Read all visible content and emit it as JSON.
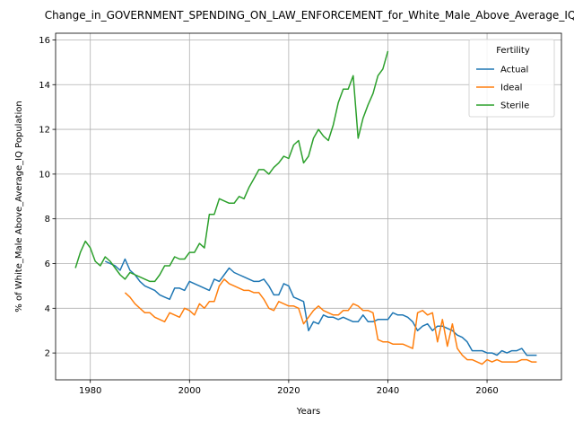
{
  "chart_data": {
    "type": "line",
    "title": "Change_in_GOVERNMENT_SPENDING_ON_LAW_ENFORCEMENT_for_White_Male_Above_Average_IQ",
    "xlabel": "Years",
    "ylabel": "% of White_Male Above_Average_IQ Population",
    "xlim": [
      1973,
      2075
    ],
    "ylim": [
      0.8,
      16.3
    ],
    "xticks": [
      1980,
      2000,
      2020,
      2040,
      2060
    ],
    "yticks": [
      2,
      4,
      6,
      8,
      10,
      12,
      14,
      16
    ],
    "grid": true,
    "legend": {
      "title": "Fertility",
      "placement": "top-right"
    },
    "series": [
      {
        "name": "Actual",
        "color": "#1f77b4",
        "x": [
          1983,
          1984,
          1985,
          1986,
          1987,
          1988,
          1989,
          1990,
          1991,
          1992,
          1993,
          1994,
          1995,
          1996,
          1997,
          1998,
          1999,
          2000,
          2001,
          2002,
          2003,
          2004,
          2005,
          2006,
          2007,
          2008,
          2009,
          2010,
          2011,
          2012,
          2013,
          2014,
          2015,
          2016,
          2017,
          2018,
          2019,
          2020,
          2021,
          2022,
          2023,
          2024,
          2025,
          2026,
          2027,
          2028,
          2029,
          2030,
          2031,
          2032,
          2033,
          2034,
          2035,
          2036,
          2037,
          2038,
          2039,
          2040,
          2041,
          2042,
          2043,
          2044,
          2045,
          2046,
          2047,
          2048,
          2049,
          2050,
          2051,
          2052,
          2053,
          2054,
          2055,
          2056,
          2057,
          2058,
          2059,
          2060,
          2061,
          2062,
          2063,
          2064,
          2065,
          2066,
          2067,
          2068,
          2069,
          2070
        ],
        "values": [
          6.1,
          6.0,
          5.9,
          5.7,
          6.2,
          5.7,
          5.5,
          5.2,
          5.0,
          4.9,
          4.8,
          4.6,
          4.5,
          4.4,
          4.9,
          4.9,
          4.8,
          5.2,
          5.1,
          5.0,
          4.9,
          4.8,
          5.3,
          5.2,
          5.5,
          5.8,
          5.6,
          5.5,
          5.4,
          5.3,
          5.2,
          5.2,
          5.3,
          5.0,
          4.6,
          4.6,
          5.1,
          5.0,
          4.5,
          4.4,
          4.3,
          3.0,
          3.4,
          3.3,
          3.7,
          3.6,
          3.6,
          3.5,
          3.6,
          3.5,
          3.4,
          3.4,
          3.7,
          3.4,
          3.4,
          3.5,
          3.5,
          3.5,
          3.8,
          3.7,
          3.7,
          3.6,
          3.4,
          3.0,
          3.2,
          3.3,
          3.0,
          3.2,
          3.2,
          3.1,
          3.0,
          2.8,
          2.7,
          2.5,
          2.1,
          2.1,
          2.1,
          2.0,
          2.0,
          1.9,
          2.1,
          2.0,
          2.1,
          2.1,
          2.2,
          1.9,
          1.9,
          1.9
        ]
      },
      {
        "name": "Ideal",
        "color": "#ff7f0e",
        "x": [
          1987,
          1988,
          1989,
          1990,
          1991,
          1992,
          1993,
          1994,
          1995,
          1996,
          1997,
          1998,
          1999,
          2000,
          2001,
          2002,
          2003,
          2004,
          2005,
          2006,
          2007,
          2008,
          2009,
          2010,
          2011,
          2012,
          2013,
          2014,
          2015,
          2016,
          2017,
          2018,
          2019,
          2020,
          2021,
          2022,
          2023,
          2024,
          2025,
          2026,
          2027,
          2028,
          2029,
          2030,
          2031,
          2032,
          2033,
          2034,
          2035,
          2036,
          2037,
          2038,
          2039,
          2040,
          2041,
          2042,
          2043,
          2044,
          2045,
          2046,
          2047,
          2048,
          2049,
          2050,
          2051,
          2052,
          2053,
          2054,
          2055,
          2056,
          2057,
          2058,
          2059,
          2060,
          2061,
          2062,
          2063,
          2064,
          2065,
          2066,
          2067,
          2068,
          2069,
          2070
        ],
        "values": [
          4.7,
          4.5,
          4.2,
          4.0,
          3.8,
          3.8,
          3.6,
          3.5,
          3.4,
          3.8,
          3.7,
          3.6,
          4.0,
          3.9,
          3.7,
          4.2,
          4.0,
          4.3,
          4.3,
          5.0,
          5.3,
          5.1,
          5.0,
          4.9,
          4.8,
          4.8,
          4.7,
          4.7,
          4.4,
          4.0,
          3.9,
          4.3,
          4.2,
          4.1,
          4.1,
          4.0,
          3.3,
          3.6,
          3.9,
          4.1,
          3.9,
          3.8,
          3.7,
          3.7,
          3.9,
          3.9,
          4.2,
          4.1,
          3.9,
          3.9,
          3.8,
          2.6,
          2.5,
          2.5,
          2.4,
          2.4,
          2.4,
          2.3,
          2.2,
          3.8,
          3.9,
          3.7,
          3.8,
          2.5,
          3.5,
          2.3,
          3.3,
          2.2,
          1.9,
          1.7,
          1.7,
          1.6,
          1.5,
          1.7,
          1.6,
          1.7,
          1.6,
          1.6,
          1.6,
          1.6,
          1.7,
          1.7,
          1.6,
          1.6
        ]
      },
      {
        "name": "Sterile",
        "color": "#2ca02c",
        "x": [
          1977,
          1978,
          1979,
          1980,
          1981,
          1982,
          1983,
          1984,
          1985,
          1986,
          1987,
          1988,
          1989,
          1990,
          1991,
          1992,
          1993,
          1994,
          1995,
          1996,
          1997,
          1998,
          1999,
          2000,
          2001,
          2002,
          2003,
          2004,
          2005,
          2006,
          2007,
          2008,
          2009,
          2010,
          2011,
          2012,
          2013,
          2014,
          2015,
          2016,
          2017,
          2018,
          2019,
          2020,
          2021,
          2022,
          2023,
          2024,
          2025,
          2026,
          2027,
          2028,
          2029,
          2030,
          2031,
          2032,
          2033,
          2034,
          2035,
          2036,
          2037,
          2038,
          2039,
          2040
        ],
        "values": [
          5.8,
          6.5,
          7.0,
          6.7,
          6.1,
          5.9,
          6.3,
          6.1,
          5.8,
          5.5,
          5.3,
          5.6,
          5.5,
          5.4,
          5.3,
          5.2,
          5.2,
          5.5,
          5.9,
          5.9,
          6.3,
          6.2,
          6.2,
          6.5,
          6.5,
          6.9,
          6.7,
          8.2,
          8.2,
          8.9,
          8.8,
          8.7,
          8.7,
          9.0,
          8.9,
          9.4,
          9.8,
          10.2,
          10.2,
          10.0,
          10.3,
          10.5,
          10.8,
          10.7,
          11.3,
          11.5,
          10.5,
          10.8,
          11.6,
          12.0,
          11.7,
          11.5,
          12.2,
          13.2,
          13.8,
          13.8,
          14.4,
          11.6,
          12.5,
          13.1,
          13.6,
          14.4,
          14.7,
          15.5
        ]
      }
    ]
  }
}
